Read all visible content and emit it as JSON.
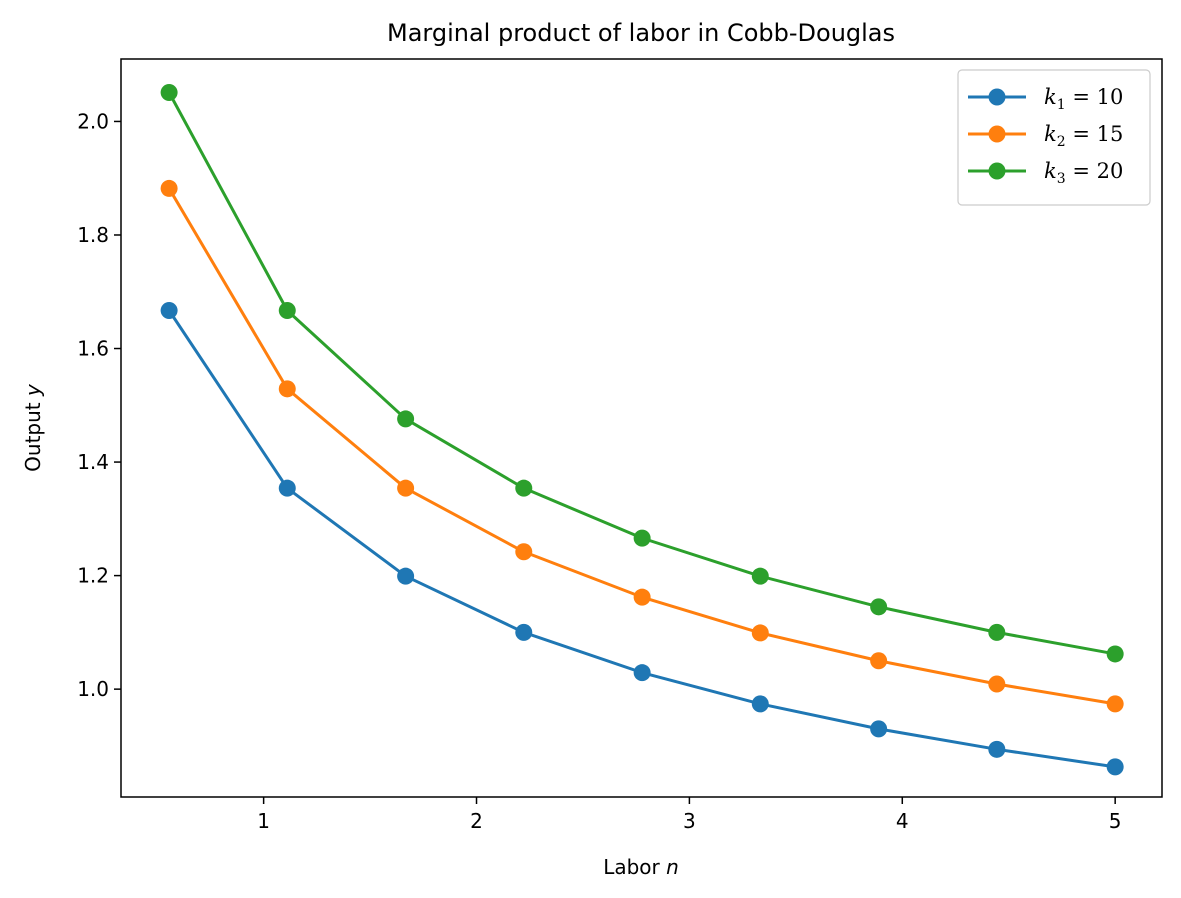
{
  "chart_data": {
    "type": "line",
    "title": "Marginal product of labor in Cobb-Douglas",
    "xlabel": "Labor",
    "xlabel_var": "n",
    "ylabel": "Output",
    "ylabel_var": "y",
    "xlim": [
      0.33,
      5.22
    ],
    "ylim": [
      0.81,
      2.11
    ],
    "xticks": [
      1,
      2,
      3,
      4,
      5
    ],
    "yticks": [
      1.0,
      1.2,
      1.4,
      1.6,
      1.8,
      2.0
    ],
    "xtick_labels": [
      "1",
      "2",
      "3",
      "4",
      "5"
    ],
    "ytick_labels": [
      "1.0",
      "1.2",
      "1.4",
      "1.6",
      "1.8",
      "2.0"
    ],
    "grid": false,
    "legend_position": "top-right",
    "x": [
      0.556,
      1.111,
      1.667,
      2.222,
      2.778,
      3.333,
      3.889,
      4.444,
      5.0
    ],
    "series": [
      {
        "name": "k1 = 10",
        "legend": {
          "var": "k",
          "sub": "1",
          "rest": " = 10"
        },
        "color": "#1f77b4",
        "values": [
          1.667,
          1.354,
          1.199,
          1.1,
          1.029,
          0.974,
          0.93,
          0.894,
          0.863
        ]
      },
      {
        "name": "k2 = 15",
        "legend": {
          "var": "k",
          "sub": "2",
          "rest": " = 15"
        },
        "color": "#ff7f0e",
        "values": [
          1.882,
          1.529,
          1.354,
          1.242,
          1.162,
          1.099,
          1.05,
          1.009,
          0.974
        ]
      },
      {
        "name": "k3 = 20",
        "legend": {
          "var": "k",
          "sub": "3",
          "rest": " = 20"
        },
        "color": "#2ca02c",
        "values": [
          2.051,
          1.667,
          1.476,
          1.354,
          1.266,
          1.199,
          1.145,
          1.1,
          1.062
        ]
      }
    ]
  }
}
